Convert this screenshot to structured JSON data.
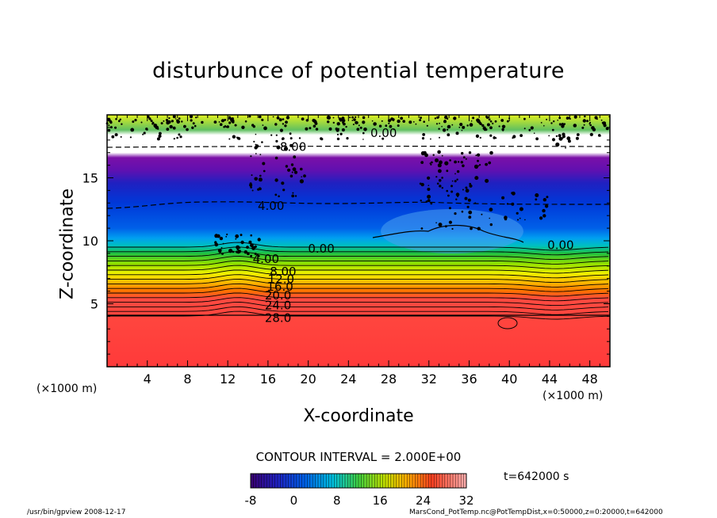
{
  "chart_data": {
    "type": "heatmap",
    "title": "disturbunce of potential temperature",
    "xlabel": "X-coordinate",
    "ylabel": "Z-coordinate",
    "x_unit_left": "(×1000 m)",
    "x_unit_right": "(×1000 m)",
    "xlim": [
      0,
      50
    ],
    "ylim": [
      0,
      20
    ],
    "x_ticks": [
      4,
      8,
      12,
      16,
      20,
      24,
      28,
      32,
      36,
      40,
      44,
      48
    ],
    "y_ticks": [
      5,
      10,
      15
    ],
    "contour_labels": [
      {
        "text": "0.00",
        "x": 27.5,
        "y": 18.5
      },
      {
        "text": "8.00",
        "x": 18.5,
        "y": 17.4
      },
      {
        "text": "4.00",
        "x": 16.3,
        "y": 12.7
      },
      {
        "text": "0.00",
        "x": 21.3,
        "y": 9.3
      },
      {
        "text": "0.00",
        "x": 45.1,
        "y": 9.6
      },
      {
        "text": "4.00",
        "x": 15.8,
        "y": 8.5
      },
      {
        "text": "8.00",
        "x": 17.5,
        "y": 7.5
      },
      {
        "text": "12.0",
        "x": 17.3,
        "y": 6.9
      },
      {
        "text": "16.0",
        "x": 17.2,
        "y": 6.3
      },
      {
        "text": "20.0",
        "x": 17.0,
        "y": 5.6
      },
      {
        "text": "24.0",
        "x": 17.0,
        "y": 4.8
      },
      {
        "text": "28.0",
        "x": 17.0,
        "y": 3.8
      }
    ],
    "contour_interval": "CONTOUR INTERVAL = 2.000E+00",
    "time_label": "t=642000 s",
    "colorbar": {
      "min": -8,
      "max": 32,
      "ticks": [
        "-8",
        "0",
        "8",
        "16",
        "24",
        "32"
      ]
    }
  },
  "footer": {
    "left": "/usr/bin/gpview   2008-12-17",
    "right": "MarsCond_PotTemp.nc@PotTempDist,x=0:50000,z=0:20000,t=642000"
  }
}
